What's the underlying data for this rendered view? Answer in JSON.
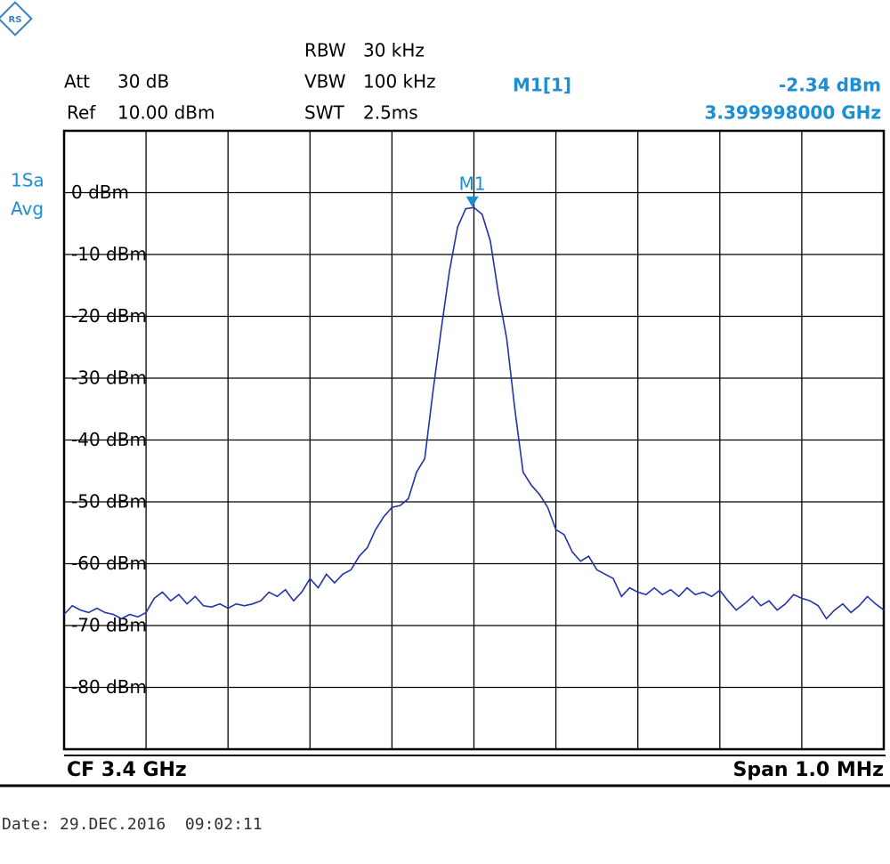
{
  "chart_data": {
    "type": "line",
    "settings": {
      "att_label": "Att",
      "att": "30 dB",
      "ref_label": "Ref",
      "ref": "10.00 dBm",
      "rbw_label": "RBW",
      "rbw": "30 kHz",
      "vbw_label": "VBW",
      "vbw": "100 kHz",
      "swt_label": "SWT",
      "swt": "2.5ms",
      "trace_mode_1": "1Sa",
      "trace_mode_2": "Avg"
    },
    "marker": {
      "name": "M1",
      "readout_name": "M1[1]",
      "x": 3.399998,
      "value": -2.34,
      "value_label": "-2.34 dBm",
      "x_label": "3.399998000 GHz",
      "color": "#1b8fd2"
    },
    "center_label": "CF 3.4 GHz",
    "span_label": "Span 1.0 MHz",
    "date": "Date: 29.DEC.2016  09:02:11",
    "xlim": [
      3.3995,
      3.4005
    ],
    "ylim": [
      -90,
      10
    ],
    "yticks": [
      {
        "value": 0,
        "label": "0 dBm"
      },
      {
        "value": -10,
        "label": "-10 dBm"
      },
      {
        "value": -20,
        "label": "-20 dBm"
      },
      {
        "value": -30,
        "label": "-30 dBm"
      },
      {
        "value": -40,
        "label": "-40 dBm"
      },
      {
        "value": -50,
        "label": "-50 dBm"
      },
      {
        "value": -60,
        "label": "-60 dBm"
      },
      {
        "value": -70,
        "label": "-70 dBm"
      },
      {
        "value": -80,
        "label": "-80 dBm"
      }
    ],
    "grid": true,
    "x": [
      3.3995,
      3.39951,
      3.39952,
      3.39953,
      3.39954,
      3.39955,
      3.39956,
      3.39957,
      3.39958,
      3.39959,
      3.3996,
      3.39961,
      3.39962,
      3.39963,
      3.39964,
      3.39965,
      3.39966,
      3.39967,
      3.39968,
      3.39969,
      3.3997,
      3.39971,
      3.39972,
      3.39973,
      3.39974,
      3.39975,
      3.39976,
      3.39977,
      3.39978,
      3.39979,
      3.3998,
      3.39981,
      3.39982,
      3.39983,
      3.39984,
      3.39985,
      3.39986,
      3.39987,
      3.39988,
      3.39989,
      3.3999,
      3.39991,
      3.39992,
      3.39993,
      3.39994,
      3.39995,
      3.39996,
      3.39997,
      3.39998,
      3.39999,
      3.4,
      3.40001,
      3.40002,
      3.40003,
      3.40004,
      3.40005,
      3.40006,
      3.40007,
      3.40008,
      3.40009,
      3.4001,
      3.40011,
      3.40012,
      3.40013,
      3.40014,
      3.40015,
      3.40016,
      3.40017,
      3.40018,
      3.40019,
      3.4002,
      3.40021,
      3.40022,
      3.40023,
      3.40024,
      3.40025,
      3.40026,
      3.40027,
      3.40028,
      3.40029,
      3.4003,
      3.40031,
      3.40032,
      3.40033,
      3.40034,
      3.40035,
      3.40036,
      3.40037,
      3.40038,
      3.40039,
      3.4004,
      3.40041,
      3.40042,
      3.40043,
      3.40044,
      3.40045,
      3.40046,
      3.40047,
      3.40048,
      3.40049,
      3.4005
    ],
    "series": [
      {
        "color": "#2233aa",
        "values": [
          -68.2,
          -66.8,
          -67.5,
          -67.9,
          -67.2,
          -67.9,
          -68.2,
          -68.9,
          -68.2,
          -68.6,
          -67.9,
          -65.6,
          -64.6,
          -66,
          -65,
          -66.5,
          -65.3,
          -66.8,
          -67,
          -66.5,
          -67.2,
          -66.5,
          -66.8,
          -66.5,
          -66,
          -64.6,
          -65.3,
          -64.2,
          -66,
          -64.6,
          -62.4,
          -63.9,
          -61.7,
          -63.1,
          -61.7,
          -61,
          -58.8,
          -57.4,
          -54.5,
          -52.4,
          -50.9,
          -50.6,
          -49.5,
          -45.2,
          -43,
          -32.2,
          -22.2,
          -12.8,
          -5.6,
          -2.6,
          -2.4,
          -3.5,
          -7.8,
          -16.4,
          -23.6,
          -35.1,
          -45.2,
          -47.3,
          -48.8,
          -50.9,
          -54.5,
          -55.3,
          -58.1,
          -59.6,
          -58.8,
          -61,
          -61.7,
          -62.4,
          -65.3,
          -63.9,
          -64.6,
          -65,
          -63.9,
          -65,
          -64.2,
          -65.3,
          -63.9,
          -65,
          -64.6,
          -65.3,
          -64.3,
          -66,
          -67.5,
          -66.5,
          -65.3,
          -66.8,
          -66,
          -67.5,
          -66.5,
          -65,
          -65.6,
          -66,
          -66.8,
          -68.9,
          -67.5,
          -66.5,
          -67.9,
          -66.8,
          -65.3,
          -66.5,
          -67.5
        ]
      }
    ]
  }
}
